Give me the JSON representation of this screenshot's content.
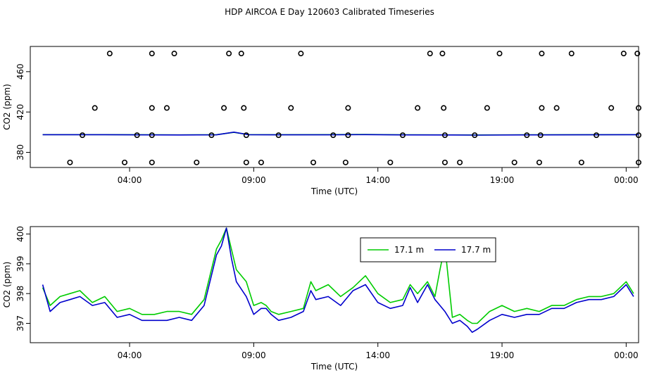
{
  "figure": {
    "title": "HDP AIRCOA E  Day 120603  Calibrated Timeseries"
  },
  "chart_data": [
    {
      "type": "scatter",
      "xlabel": "Time (UTC)",
      "ylabel": "CO2 (ppm)",
      "xlim": [
        0.0,
        24.5
      ],
      "ylim": [
        365.0,
        485.0
      ],
      "x_ticks": [
        4,
        9,
        14,
        19,
        24
      ],
      "x_tick_labels": [
        "04:00",
        "09:00",
        "14:00",
        "19:00",
        "00:00"
      ],
      "y_ticks": [
        380,
        420,
        460
      ],
      "y_tick_labels": [
        "380",
        "420",
        "460"
      ],
      "grid": false,
      "legend": "none",
      "points_color": "#000000",
      "points": [
        {
          "x": 1.6,
          "y": 370
        },
        {
          "x": 2.1,
          "y": 397
        },
        {
          "x": 2.6,
          "y": 424
        },
        {
          "x": 3.2,
          "y": 478
        },
        {
          "x": 3.8,
          "y": 370
        },
        {
          "x": 4.3,
          "y": 397
        },
        {
          "x": 4.9,
          "y": 370
        },
        {
          "x": 4.9,
          "y": 397
        },
        {
          "x": 4.9,
          "y": 424
        },
        {
          "x": 4.9,
          "y": 478
        },
        {
          "x": 5.5,
          "y": 424
        },
        {
          "x": 5.8,
          "y": 478
        },
        {
          "x": 6.7,
          "y": 370
        },
        {
          "x": 7.3,
          "y": 397
        },
        {
          "x": 7.8,
          "y": 424
        },
        {
          "x": 8.0,
          "y": 478
        },
        {
          "x": 8.5,
          "y": 478
        },
        {
          "x": 8.6,
          "y": 424
        },
        {
          "x": 8.7,
          "y": 397
        },
        {
          "x": 8.7,
          "y": 370
        },
        {
          "x": 9.3,
          "y": 370
        },
        {
          "x": 10.0,
          "y": 397
        },
        {
          "x": 10.5,
          "y": 424
        },
        {
          "x": 10.9,
          "y": 478
        },
        {
          "x": 11.4,
          "y": 370
        },
        {
          "x": 12.2,
          "y": 397
        },
        {
          "x": 12.7,
          "y": 370
        },
        {
          "x": 12.8,
          "y": 397
        },
        {
          "x": 12.8,
          "y": 424
        },
        {
          "x": 14.5,
          "y": 370
        },
        {
          "x": 15.0,
          "y": 397
        },
        {
          "x": 15.6,
          "y": 424
        },
        {
          "x": 16.1,
          "y": 478
        },
        {
          "x": 16.6,
          "y": 478
        },
        {
          "x": 16.65,
          "y": 424
        },
        {
          "x": 16.7,
          "y": 397
        },
        {
          "x": 16.7,
          "y": 370
        },
        {
          "x": 17.3,
          "y": 370
        },
        {
          "x": 17.9,
          "y": 397
        },
        {
          "x": 18.4,
          "y": 424
        },
        {
          "x": 18.9,
          "y": 478
        },
        {
          "x": 19.5,
          "y": 370
        },
        {
          "x": 20.0,
          "y": 397
        },
        {
          "x": 20.5,
          "y": 370
        },
        {
          "x": 20.55,
          "y": 397
        },
        {
          "x": 20.6,
          "y": 424
        },
        {
          "x": 20.6,
          "y": 478
        },
        {
          "x": 21.2,
          "y": 424
        },
        {
          "x": 21.8,
          "y": 478
        },
        {
          "x": 22.2,
          "y": 370
        },
        {
          "x": 22.8,
          "y": 397
        },
        {
          "x": 23.4,
          "y": 424
        },
        {
          "x": 23.9,
          "y": 478
        },
        {
          "x": 24.45,
          "y": 478
        },
        {
          "x": 24.5,
          "y": 424
        },
        {
          "x": 24.5,
          "y": 397
        },
        {
          "x": 24.5,
          "y": 370
        }
      ],
      "series": [
        {
          "color": "#00cc00",
          "x": [
            0.5,
            3.0,
            6.0,
            7.5,
            8.2,
            8.8,
            10.0,
            12.0,
            13.5,
            15.0,
            17.0,
            18.0,
            20.0,
            22.0,
            24.5
          ],
          "y": [
            397.6,
            397.6,
            397.3,
            397.5,
            399.8,
            397.6,
            397.5,
            397.6,
            397.8,
            397.4,
            397.3,
            397.2,
            397.4,
            397.5,
            397.6
          ]
        },
        {
          "color": "#0000cc",
          "x": [
            0.5,
            3.0,
            6.0,
            7.5,
            8.2,
            8.8,
            10.0,
            12.0,
            13.5,
            15.0,
            17.0,
            18.0,
            20.0,
            22.0,
            24.5
          ],
          "y": [
            397.5,
            397.5,
            397.2,
            397.4,
            400.0,
            397.5,
            397.4,
            397.4,
            397.6,
            397.3,
            397.2,
            397.1,
            397.3,
            397.4,
            397.5
          ]
        }
      ]
    },
    {
      "type": "line",
      "xlabel": "Time (UTC)",
      "ylabel": "CO2 (ppm)",
      "xlim": [
        0.0,
        24.5
      ],
      "ylim": [
        396.35,
        400.25
      ],
      "x_ticks": [
        4,
        9,
        14,
        19,
        24
      ],
      "x_tick_labels": [
        "04:00",
        "09:00",
        "14:00",
        "19:00",
        "00:00"
      ],
      "y_ticks": [
        397,
        398,
        399,
        400
      ],
      "y_tick_labels": [
        "397",
        "398",
        "399",
        "400"
      ],
      "grid": false,
      "legend": "top-center",
      "series": [
        {
          "name": "17.1 m",
          "color": "#00cc00",
          "x": [
            0.5,
            0.8,
            1.2,
            1.6,
            2.0,
            2.5,
            3.0,
            3.5,
            4.0,
            4.5,
            5.0,
            5.5,
            6.0,
            6.5,
            7.0,
            7.5,
            7.7,
            7.9,
            8.1,
            8.3,
            8.7,
            9.0,
            9.3,
            9.5,
            9.7,
            10.0,
            10.5,
            11.0,
            11.3,
            11.5,
            12.0,
            12.5,
            13.0,
            13.5,
            14.0,
            14.5,
            15.0,
            15.3,
            15.6,
            16.0,
            16.3,
            16.5,
            16.7,
            17.0,
            17.3,
            17.6,
            17.8,
            18.0,
            18.5,
            19.0,
            19.5,
            20.0,
            20.5,
            21.0,
            21.5,
            22.0,
            22.5,
            23.0,
            23.5,
            24.0,
            24.3
          ],
          "y": [
            398.2,
            397.6,
            397.9,
            398.0,
            398.1,
            397.7,
            397.9,
            397.4,
            397.5,
            397.3,
            397.3,
            397.4,
            397.4,
            397.3,
            397.8,
            399.5,
            399.8,
            400.2,
            399.5,
            398.8,
            398.4,
            397.6,
            397.7,
            397.6,
            397.4,
            397.3,
            397.4,
            397.5,
            398.4,
            398.1,
            398.3,
            397.9,
            398.2,
            398.6,
            398.0,
            397.7,
            397.8,
            398.3,
            398.0,
            398.4,
            397.9,
            398.8,
            399.6,
            397.2,
            397.3,
            397.1,
            397.0,
            397.0,
            397.4,
            397.6,
            397.4,
            397.5,
            397.4,
            397.6,
            397.6,
            397.8,
            397.9,
            397.9,
            398.0,
            398.4,
            398.0
          ]
        },
        {
          "name": "17.7 m",
          "color": "#0000cc",
          "x": [
            0.5,
            0.8,
            1.2,
            1.6,
            2.0,
            2.5,
            3.0,
            3.5,
            4.0,
            4.5,
            5.0,
            5.5,
            6.0,
            6.5,
            7.0,
            7.5,
            7.7,
            7.9,
            8.1,
            8.3,
            8.7,
            9.0,
            9.3,
            9.5,
            9.7,
            10.0,
            10.5,
            11.0,
            11.3,
            11.5,
            12.0,
            12.5,
            13.0,
            13.5,
            14.0,
            14.5,
            15.0,
            15.3,
            15.6,
            16.0,
            16.3,
            16.5,
            16.7,
            17.0,
            17.3,
            17.6,
            17.8,
            18.0,
            18.5,
            19.0,
            19.5,
            20.0,
            20.5,
            21.0,
            21.5,
            22.0,
            22.5,
            23.0,
            23.5,
            24.0,
            24.3
          ],
          "y": [
            398.3,
            397.4,
            397.7,
            397.8,
            397.9,
            397.6,
            397.7,
            397.2,
            397.3,
            397.1,
            397.1,
            397.1,
            397.2,
            397.1,
            397.6,
            399.3,
            399.6,
            400.2,
            399.2,
            398.4,
            397.9,
            397.3,
            397.5,
            397.5,
            397.3,
            397.1,
            397.2,
            397.4,
            398.1,
            397.8,
            397.9,
            397.6,
            398.1,
            398.3,
            397.7,
            397.5,
            397.6,
            398.2,
            397.7,
            398.3,
            397.8,
            397.6,
            397.4,
            397.0,
            397.1,
            396.9,
            396.7,
            396.8,
            397.1,
            397.3,
            397.2,
            397.3,
            397.3,
            397.5,
            397.5,
            397.7,
            397.8,
            397.8,
            397.9,
            398.3,
            397.9
          ]
        }
      ]
    }
  ]
}
